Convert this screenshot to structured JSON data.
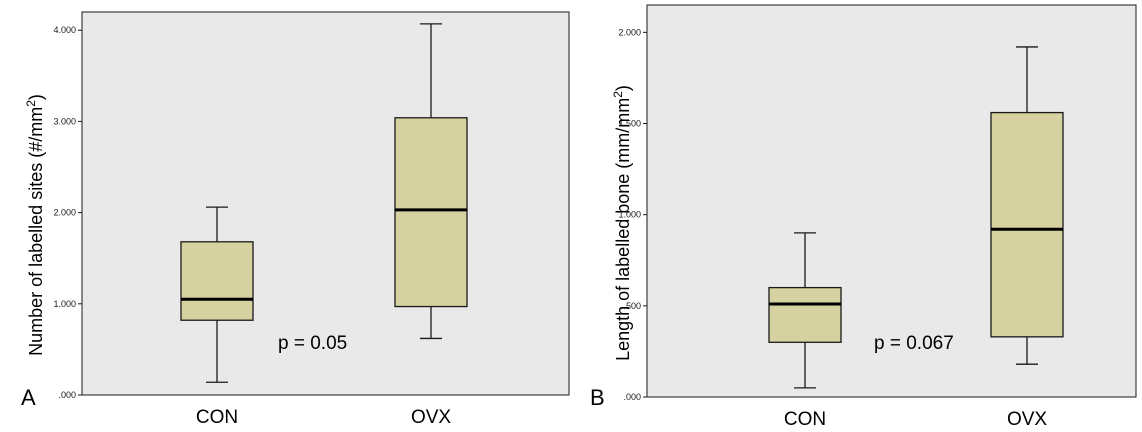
{
  "chart_data": [
    {
      "type": "boxplot",
      "panel": "A",
      "ylabel_main": "Number of labelled sites (#/mm",
      "ylabel_sup": "2",
      "ylabel_end": ")",
      "ylim": [
        0,
        4.2
      ],
      "ticks": [
        {
          "value": 0,
          "label": ".000"
        },
        {
          "value": 1,
          "label": "1.000"
        },
        {
          "value": 2,
          "label": "2.000"
        },
        {
          "value": 3,
          "label": "3.000"
        },
        {
          "value": 4,
          "label": "4.000"
        }
      ],
      "categories": [
        "CON",
        "OVX"
      ],
      "series": [
        {
          "category": "CON",
          "min": 0.14,
          "q1": 0.82,
          "median": 1.05,
          "q3": 1.68,
          "max": 2.06
        },
        {
          "category": "OVX",
          "min": 0.62,
          "q1": 0.97,
          "median": 2.03,
          "q3": 3.04,
          "max": 4.07
        }
      ],
      "annotation": "p = 0.05",
      "colors": {
        "box": "#d6d1a1",
        "background": "#e9e9e9"
      }
    },
    {
      "type": "boxplot",
      "panel": "B",
      "ylabel_main": "Length of labelled bone (mm/mm",
      "ylabel_sup": "2",
      "ylabel_end": ")",
      "ylim": [
        0,
        2.15
      ],
      "ticks": [
        {
          "value": 0,
          "label": ".000"
        },
        {
          "value": 0.5,
          "label": ".500"
        },
        {
          "value": 1,
          "label": "1.000"
        },
        {
          "value": 1.5,
          "label": "1.500"
        },
        {
          "value": 2,
          "label": "2.000"
        }
      ],
      "categories": [
        "CON",
        "OVX"
      ],
      "series": [
        {
          "category": "CON",
          "min": 0.05,
          "q1": 0.3,
          "median": 0.51,
          "q3": 0.6,
          "max": 0.9
        },
        {
          "category": "OVX",
          "min": 0.18,
          "q1": 0.33,
          "median": 0.92,
          "q3": 1.56,
          "max": 1.92
        }
      ],
      "annotation": "p = 0.067",
      "colors": {
        "box": "#d6d1a1",
        "background": "#e9e9e9"
      }
    }
  ]
}
